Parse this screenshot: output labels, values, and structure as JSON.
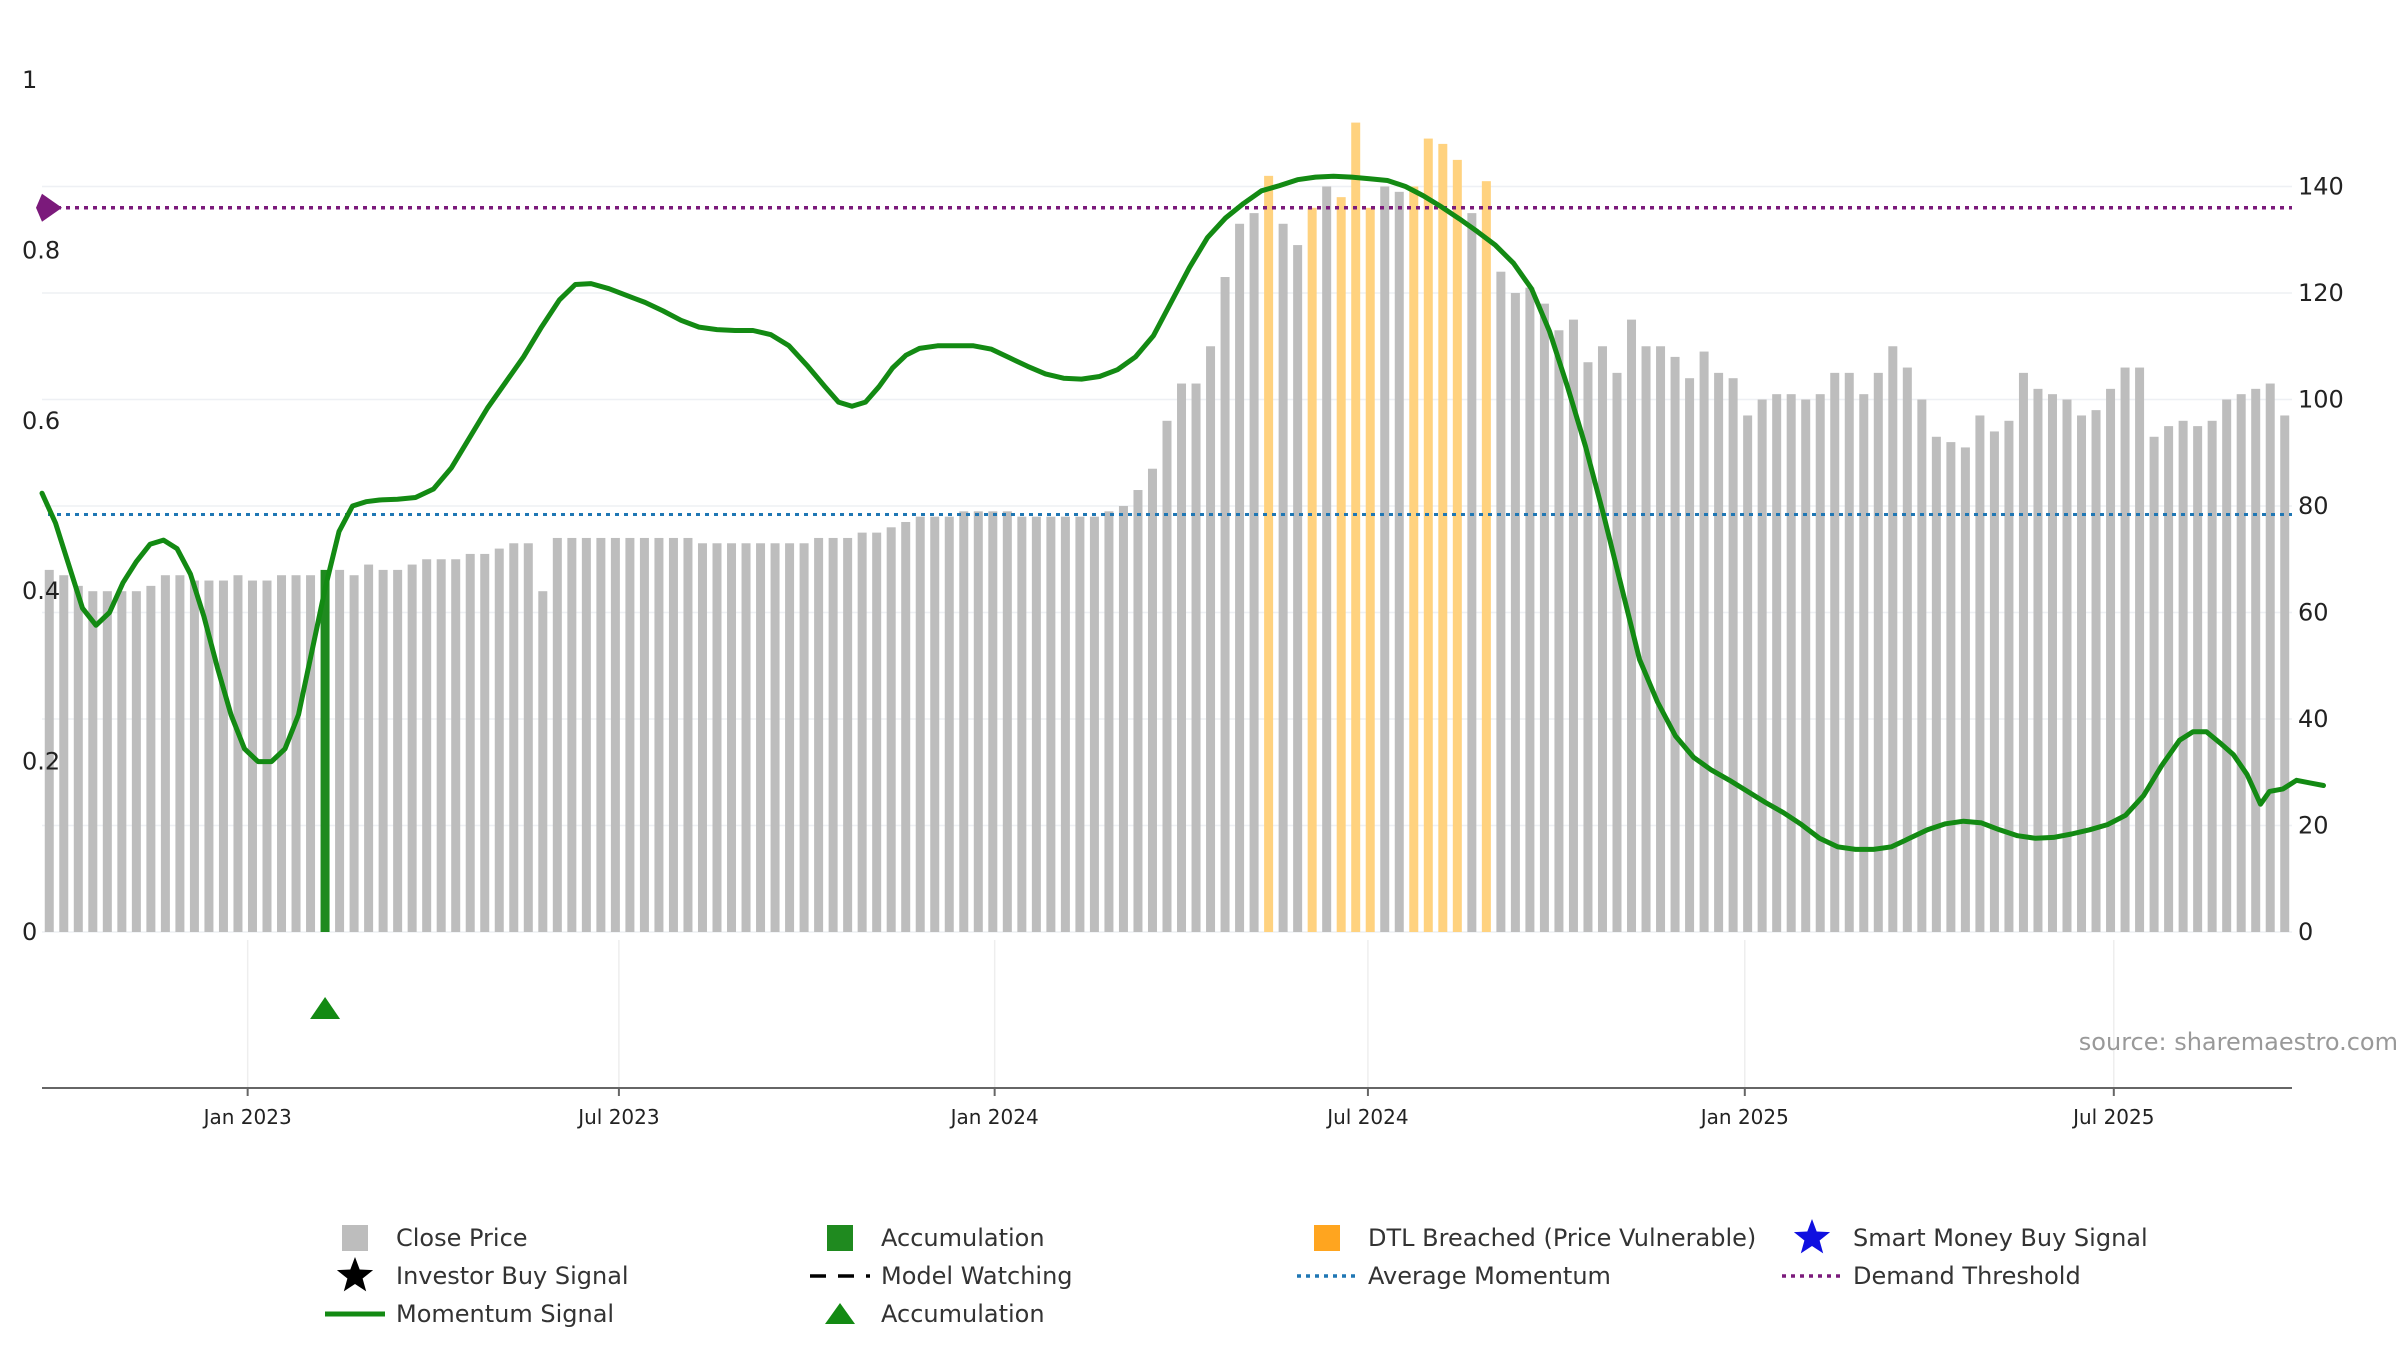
{
  "chart_data": {
    "type": "bar+line",
    "watermark": "source: sharemaestro.com",
    "x_ticks": [
      "Jan 2023",
      "Jul 2023",
      "Jan 2024",
      "Jul 2024",
      "Jan 2025",
      "Jul 2025"
    ],
    "left_axis": {
      "ticks": [
        "0",
        "0.2",
        "0.4",
        "0.6",
        "0.8",
        "1"
      ],
      "range": [
        0,
        1
      ]
    },
    "right_axis": {
      "ticks": [
        "0",
        "20",
        "40",
        "60",
        "80",
        "100",
        "120",
        "140"
      ],
      "range": [
        0,
        160
      ]
    },
    "close_price": {
      "name": "Close Price",
      "color": "#bdbdbd",
      "values": [
        68,
        67,
        65,
        64,
        64,
        64,
        64,
        65,
        67,
        67,
        66,
        66,
        66,
        67,
        66,
        66,
        67,
        67,
        67,
        68,
        68,
        67,
        69,
        68,
        68,
        69,
        70,
        70,
        70,
        71,
        71,
        72,
        73,
        73,
        64,
        74,
        74,
        74,
        74,
        74,
        74,
        74,
        74,
        74,
        74,
        73,
        73,
        73,
        73,
        73,
        73,
        73,
        73,
        74,
        74,
        74,
        75,
        75,
        76,
        77,
        78,
        78,
        78,
        79,
        79,
        79,
        79,
        78,
        78,
        78,
        78,
        78,
        78,
        79,
        80,
        83,
        87,
        96,
        103,
        103,
        110,
        123,
        133,
        135,
        126,
        133,
        129,
        130,
        140,
        139,
        123,
        125,
        140,
        139,
        137,
        135,
        128,
        126,
        135,
        128,
        124,
        120,
        121,
        118,
        113,
        115,
        107,
        110,
        105,
        115,
        110,
        110,
        108,
        104,
        109,
        105,
        104,
        97,
        100,
        101,
        101,
        100,
        101,
        105,
        105,
        101,
        105,
        110,
        106,
        100,
        93,
        92,
        91,
        97,
        94,
        96,
        105,
        102,
        101,
        100,
        97,
        98,
        102,
        106,
        106,
        93,
        95,
        96,
        95,
        96,
        100,
        101,
        102,
        103,
        97
      ]
    },
    "accumulation_bars": {
      "name": "Accumulation",
      "color": "#1f8a1f",
      "indices": [
        19
      ],
      "value": 68
    },
    "dtl_breached": {
      "name": "DTL Breached (Price Vulnerable)",
      "color": "#ffd27f",
      "bars": [
        [
          84,
          142
        ],
        [
          87,
          136
        ],
        [
          89,
          138
        ],
        [
          90,
          152
        ],
        [
          91,
          136
        ],
        [
          94,
          140
        ],
        [
          95,
          149
        ],
        [
          96,
          148
        ],
        [
          97,
          145
        ],
        [
          99,
          141
        ]
      ]
    },
    "momentum_signal": {
      "name": "Momentum Signal",
      "color": "#138a13",
      "points": [
        [
          0,
          0.515
        ],
        [
          0.006,
          0.48
        ],
        [
          0.012,
          0.43
        ],
        [
          0.018,
          0.38
        ],
        [
          0.024,
          0.36
        ],
        [
          0.03,
          0.375
        ],
        [
          0.036,
          0.41
        ],
        [
          0.042,
          0.435
        ],
        [
          0.048,
          0.455
        ],
        [
          0.054,
          0.46
        ],
        [
          0.06,
          0.45
        ],
        [
          0.066,
          0.42
        ],
        [
          0.072,
          0.37
        ],
        [
          0.078,
          0.31
        ],
        [
          0.084,
          0.255
        ],
        [
          0.09,
          0.215
        ],
        [
          0.096,
          0.2
        ],
        [
          0.102,
          0.2
        ],
        [
          0.108,
          0.215
        ],
        [
          0.114,
          0.255
        ],
        [
          0.12,
          0.33
        ],
        [
          0.126,
          0.405
        ],
        [
          0.132,
          0.47
        ],
        [
          0.138,
          0.5
        ],
        [
          0.144,
          0.505
        ],
        [
          0.15,
          0.507
        ],
        [
          0.158,
          0.508
        ],
        [
          0.166,
          0.51
        ],
        [
          0.174,
          0.52
        ],
        [
          0.182,
          0.545
        ],
        [
          0.19,
          0.58
        ],
        [
          0.198,
          0.615
        ],
        [
          0.206,
          0.645
        ],
        [
          0.214,
          0.675
        ],
        [
          0.222,
          0.71
        ],
        [
          0.23,
          0.742
        ],
        [
          0.237,
          0.76
        ],
        [
          0.244,
          0.761
        ],
        [
          0.252,
          0.755
        ],
        [
          0.26,
          0.747
        ],
        [
          0.268,
          0.739
        ],
        [
          0.276,
          0.729
        ],
        [
          0.284,
          0.718
        ],
        [
          0.292,
          0.71
        ],
        [
          0.3,
          0.707
        ],
        [
          0.308,
          0.706
        ],
        [
          0.316,
          0.706
        ],
        [
          0.324,
          0.701
        ],
        [
          0.332,
          0.688
        ],
        [
          0.34,
          0.665
        ],
        [
          0.348,
          0.64
        ],
        [
          0.354,
          0.622
        ],
        [
          0.36,
          0.617
        ],
        [
          0.366,
          0.622
        ],
        [
          0.372,
          0.64
        ],
        [
          0.378,
          0.662
        ],
        [
          0.384,
          0.677
        ],
        [
          0.39,
          0.685
        ],
        [
          0.398,
          0.688
        ],
        [
          0.406,
          0.688
        ],
        [
          0.414,
          0.688
        ],
        [
          0.422,
          0.684
        ],
        [
          0.43,
          0.674
        ],
        [
          0.438,
          0.664
        ],
        [
          0.446,
          0.655
        ],
        [
          0.454,
          0.65
        ],
        [
          0.462,
          0.649
        ],
        [
          0.47,
          0.652
        ],
        [
          0.478,
          0.66
        ],
        [
          0.486,
          0.675
        ],
        [
          0.494,
          0.7
        ],
        [
          0.502,
          0.74
        ],
        [
          0.51,
          0.78
        ],
        [
          0.518,
          0.815
        ],
        [
          0.526,
          0.838
        ],
        [
          0.534,
          0.855
        ],
        [
          0.542,
          0.87
        ],
        [
          0.55,
          0.876
        ],
        [
          0.558,
          0.883
        ],
        [
          0.566,
          0.886
        ],
        [
          0.574,
          0.887
        ],
        [
          0.582,
          0.886
        ],
        [
          0.59,
          0.884
        ],
        [
          0.598,
          0.882
        ],
        [
          0.606,
          0.875
        ],
        [
          0.614,
          0.864
        ],
        [
          0.622,
          0.851
        ],
        [
          0.63,
          0.837
        ],
        [
          0.638,
          0.822
        ],
        [
          0.646,
          0.806
        ],
        [
          0.654,
          0.785
        ],
        [
          0.662,
          0.755
        ],
        [
          0.67,
          0.705
        ],
        [
          0.678,
          0.64
        ],
        [
          0.686,
          0.57
        ],
        [
          0.694,
          0.49
        ],
        [
          0.702,
          0.405
        ],
        [
          0.71,
          0.32
        ],
        [
          0.718,
          0.27
        ],
        [
          0.726,
          0.23
        ],
        [
          0.734,
          0.205
        ],
        [
          0.742,
          0.19
        ],
        [
          0.75,
          0.178
        ],
        [
          0.758,
          0.165
        ],
        [
          0.766,
          0.152
        ],
        [
          0.774,
          0.14
        ],
        [
          0.782,
          0.126
        ],
        [
          0.79,
          0.11
        ],
        [
          0.798,
          0.1
        ],
        [
          0.806,
          0.097
        ],
        [
          0.814,
          0.097
        ],
        [
          0.822,
          0.1
        ],
        [
          0.83,
          0.11
        ],
        [
          0.838,
          0.12
        ],
        [
          0.846,
          0.127
        ],
        [
          0.854,
          0.13
        ],
        [
          0.862,
          0.128
        ],
        [
          0.87,
          0.12
        ],
        [
          0.878,
          0.113
        ],
        [
          0.886,
          0.11
        ],
        [
          0.894,
          0.111
        ],
        [
          0.902,
          0.115
        ],
        [
          0.91,
          0.12
        ],
        [
          0.918,
          0.126
        ],
        [
          0.926,
          0.137
        ],
        [
          0.934,
          0.16
        ],
        [
          0.942,
          0.195
        ],
        [
          0.95,
          0.225
        ],
        [
          0.956,
          0.235
        ],
        [
          0.962,
          0.235
        ],
        [
          0.968,
          0.222
        ],
        [
          0.974,
          0.208
        ],
        [
          0.98,
          0.185
        ],
        [
          0.986,
          0.15
        ],
        [
          0.99,
          0.165
        ],
        [
          0.996,
          0.168
        ],
        [
          1.002,
          0.178
        ],
        [
          1.008,
          0.175
        ],
        [
          1.014,
          0.172
        ]
      ]
    },
    "average_momentum": {
      "name": "Average Momentum",
      "color": "#1f77b4",
      "value": 0.49
    },
    "demand_threshold": {
      "name": "Demand Threshold",
      "color": "#7b1a7b",
      "value": 0.85
    },
    "accumulation_marker": {
      "name": "Accumulation",
      "color": "#138a13",
      "x_index": 19
    },
    "legend": [
      {
        "label": "Close Price",
        "symbol": "square",
        "color": "#bdbdbd"
      },
      {
        "label": "Accumulation",
        "symbol": "square",
        "color": "#1f8a1f"
      },
      {
        "label": "DTL Breached (Price Vulnerable)",
        "symbol": "square",
        "color": "#ffa51f"
      },
      {
        "label": "Smart Money Buy Signal",
        "symbol": "star",
        "color": "#1010e0"
      },
      {
        "label": "Investor Buy Signal",
        "symbol": "star",
        "color": "#000000"
      },
      {
        "label": "Model Watching",
        "symbol": "dash",
        "color": "#000000"
      },
      {
        "label": "Average Momentum",
        "symbol": "dotted",
        "color": "#1f77b4"
      },
      {
        "label": "Demand Threshold",
        "symbol": "dotted",
        "color": "#7b1a7b"
      },
      {
        "label": "Momentum Signal",
        "symbol": "line",
        "color": "#138a13"
      },
      {
        "label": "Accumulation",
        "symbol": "triangle",
        "color": "#138a13"
      }
    ]
  }
}
